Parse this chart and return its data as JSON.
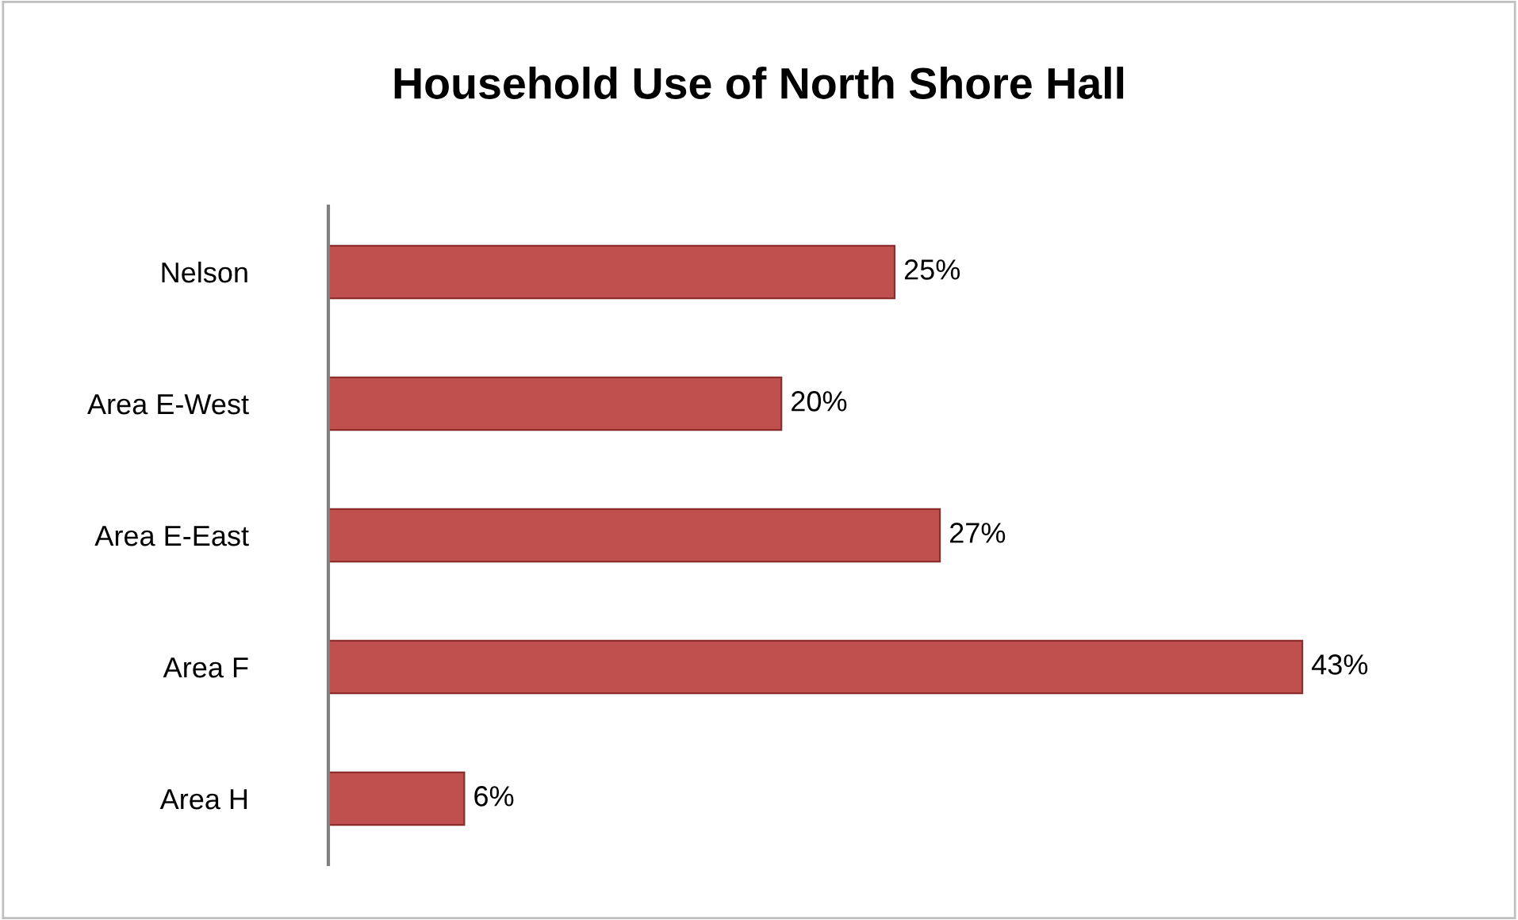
{
  "chart_data": {
    "type": "bar",
    "orientation": "horizontal",
    "title": "Household Use of North Shore Hall",
    "categories": [
      "Nelson",
      "Area E-West",
      "Area E-East",
      "Area F",
      "Area H"
    ],
    "values": [
      25,
      20,
      27,
      43,
      6
    ],
    "value_labels": [
      "25%",
      "20%",
      "27%",
      "43%",
      "6%"
    ],
    "color": "#c0504d",
    "grid": false,
    "legend": false
  }
}
